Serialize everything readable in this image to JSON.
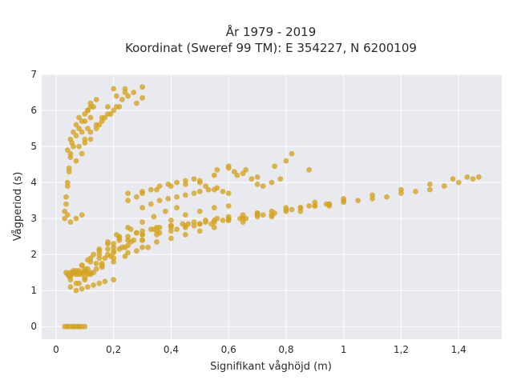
{
  "chart_data": {
    "type": "scatter",
    "title_line1": "År 1979 - 2019",
    "title_line2": "Koordinat (Sweref 99 TM): E 354227, N 6200109",
    "xlabel": "Signifikant våghöjd (m)",
    "ylabel": "Vågperiod (s)",
    "xlim": [
      -0.05,
      1.55
    ],
    "ylim": [
      -0.35,
      7.0
    ],
    "xticks": [
      0,
      0.2,
      0.4,
      0.6,
      0.8,
      1,
      1.2,
      1.4
    ],
    "xtick_labels": [
      "0",
      "0,2",
      "0,4",
      "0,6",
      "0,8",
      "1",
      "1,2",
      "1,4"
    ],
    "yticks": [
      0,
      1,
      2,
      3,
      4,
      5,
      6,
      7
    ],
    "ytick_labels": [
      "0",
      "1",
      "2",
      "3",
      "4",
      "5",
      "6",
      "7"
    ],
    "grid": true,
    "colors": {
      "background": "#e9e9f0",
      "grid": "#ffffff",
      "marker": "#d4a421"
    },
    "series": [
      {
        "x": [
          0.03,
          0.04,
          0.05,
          0.06,
          0.07,
          0.08,
          0.09,
          0.1,
          0.04,
          0.06,
          0.08,
          0.03,
          0.035,
          0.04,
          0.045,
          0.05,
          0.03,
          0.035,
          0.04,
          0.045,
          0.05,
          0.055,
          0.04,
          0.05,
          0.06,
          0.07,
          0.08,
          0.06,
          0.07,
          0.08,
          0.09,
          0.1,
          0.11,
          0.12,
          0.07,
          0.08,
          0.09,
          0.1,
          0.11,
          0.12,
          0.09,
          0.1,
          0.11,
          0.12,
          0.13,
          0.14,
          0.1,
          0.12,
          0.14,
          0.16,
          0.12,
          0.14,
          0.16,
          0.18,
          0.2,
          0.22,
          0.15,
          0.17,
          0.19,
          0.21,
          0.23,
          0.25,
          0.2,
          0.24,
          0.27,
          0.3,
          0.04,
          0.05,
          0.07,
          0.09,
          0.28,
          0.24,
          0.18,
          0.21,
          0.3,
          0.1,
          0.12,
          0.15,
          0.18,
          0.2,
          0.22,
          0.25,
          0.28,
          0.3,
          0.33,
          0.36,
          0.4,
          0.44,
          0.48,
          0.52,
          0.56,
          0.6,
          0.65,
          0.7,
          0.75,
          0.8,
          0.85,
          0.9,
          0.95,
          1.0,
          1.05,
          1.1,
          1.15,
          1.2,
          1.25,
          1.3,
          1.35,
          1.4,
          1.45,
          1.47,
          0.15,
          0.2,
          0.25,
          0.3,
          0.35,
          0.4,
          0.45,
          0.5,
          0.55,
          0.6,
          0.7,
          0.8,
          0.9,
          1.0,
          1.1,
          1.2,
          1.3,
          1.38,
          1.43,
          0.12,
          0.16,
          0.2,
          0.25,
          0.3,
          0.35,
          0.4,
          0.45,
          0.5,
          0.55,
          0.65,
          0.75,
          0.85,
          0.95,
          0.05,
          0.07,
          0.1,
          0.13,
          0.16,
          0.2,
          0.24,
          0.28,
          0.32,
          0.05,
          0.08,
          0.11,
          0.14,
          0.17,
          0.2,
          0.23,
          0.27,
          0.06,
          0.09,
          0.12,
          0.15,
          0.18,
          0.22,
          0.26,
          0.3,
          0.34,
          0.38,
          0.42,
          0.05,
          0.07,
          0.09,
          0.11,
          0.13,
          0.15,
          0.18,
          0.21,
          0.25,
          0.08,
          0.1,
          0.12,
          0.14,
          0.16,
          0.19,
          0.22,
          0.26,
          0.3,
          0.35,
          0.4,
          0.45,
          0.5,
          0.55,
          0.6,
          0.07,
          0.09,
          0.11,
          0.13,
          0.15,
          0.17,
          0.2,
          0.25,
          0.28,
          0.3,
          0.33,
          0.36,
          0.39,
          0.42,
          0.45,
          0.48,
          0.5,
          0.52,
          0.55,
          0.58,
          0.6,
          0.3,
          0.33,
          0.36,
          0.39,
          0.42,
          0.45,
          0.48,
          0.5,
          0.53,
          0.56,
          0.25,
          0.3,
          0.35,
          0.4,
          0.45,
          0.5,
          0.55,
          0.6,
          0.62,
          0.65,
          0.68,
          0.7,
          0.72,
          0.75,
          0.78,
          0.82,
          0.56,
          0.6,
          0.63,
          0.66,
          0.7,
          0.76,
          0.8,
          0.88,
          0.2,
          0.25,
          0.3,
          0.35,
          0.4,
          0.45,
          0.5,
          0.55,
          0.6,
          0.65,
          0.7,
          0.75,
          0.8,
          0.85,
          0.9,
          0.95,
          1.0,
          0.22,
          0.28,
          0.34,
          0.4,
          0.46,
          0.52,
          0.58,
          0.64,
          0.7,
          0.76,
          0.82,
          0.88,
          0.94,
          0.18,
          0.24,
          0.3,
          0.36,
          0.42,
          0.48,
          0.54,
          0.6,
          0.66,
          0.72,
          0.035,
          0.04,
          0.045,
          0.05,
          0.055,
          0.06,
          0.065,
          0.07,
          0.075,
          0.08,
          0.085,
          0.09,
          0.095,
          0.1,
          0.105,
          0.11
        ],
        "y": [
          0,
          0,
          0,
          0,
          0,
          0,
          0,
          0,
          0,
          0,
          0,
          3.2,
          3.6,
          4.0,
          4.4,
          4.7,
          3.0,
          3.4,
          3.9,
          4.3,
          4.8,
          5.1,
          4.9,
          5.2,
          5.4,
          5.6,
          5.8,
          5.0,
          5.3,
          5.5,
          5.7,
          5.9,
          6.0,
          6.1,
          4.6,
          5.0,
          5.4,
          5.7,
          6.0,
          6.2,
          4.8,
          5.2,
          5.5,
          5.8,
          6.1,
          6.3,
          5.1,
          5.4,
          5.6,
          5.8,
          5.2,
          5.5,
          5.7,
          5.9,
          6.0,
          6.1,
          5.6,
          5.8,
          5.9,
          6.1,
          6.3,
          6.4,
          6.6,
          6.6,
          6.5,
          6.65,
          3.1,
          2.9,
          3.0,
          3.1,
          6.2,
          6.5,
          6.1,
          6.4,
          6.35,
          1.6,
          1.8,
          2.0,
          2.15,
          2.3,
          2.4,
          2.5,
          2.6,
          2.65,
          2.7,
          2.75,
          2.8,
          2.85,
          2.9,
          2.95,
          3.0,
          3.05,
          3.1,
          3.15,
          3.2,
          3.25,
          3.3,
          3.35,
          3.4,
          3.45,
          3.5,
          3.55,
          3.6,
          3.7,
          3.75,
          3.8,
          3.9,
          4.0,
          4.1,
          4.15,
          1.9,
          2.1,
          2.25,
          2.4,
          2.55,
          2.65,
          2.75,
          2.85,
          2.95,
          3.0,
          3.15,
          3.3,
          3.45,
          3.55,
          3.65,
          3.8,
          3.95,
          4.1,
          4.15,
          1.5,
          1.7,
          1.9,
          2.05,
          2.2,
          2.35,
          2.45,
          2.55,
          2.65,
          2.75,
          2.9,
          3.05,
          3.2,
          3.35,
          1.1,
          1.2,
          1.35,
          1.5,
          1.65,
          1.8,
          1.95,
          2.1,
          2.2,
          1.3,
          1.45,
          1.6,
          1.75,
          1.9,
          2.05,
          2.2,
          2.4,
          1.5,
          1.7,
          1.9,
          2.1,
          2.3,
          2.5,
          2.7,
          2.9,
          3.05,
          3.2,
          3.3,
          1.4,
          1.55,
          1.7,
          1.85,
          2.0,
          2.15,
          2.35,
          2.55,
          2.75,
          1.2,
          1.3,
          1.45,
          1.6,
          1.75,
          1.95,
          2.15,
          2.35,
          2.55,
          2.75,
          2.95,
          3.1,
          3.2,
          3.3,
          3.35,
          1.0,
          1.05,
          1.1,
          1.15,
          1.2,
          1.25,
          1.3,
          3.5,
          3.6,
          3.7,
          3.8,
          3.9,
          3.95,
          4.0,
          4.05,
          4.1,
          4.0,
          3.9,
          3.8,
          3.75,
          3.7,
          3.3,
          3.4,
          3.5,
          3.55,
          3.6,
          3.65,
          3.7,
          3.75,
          3.8,
          3.85,
          3.7,
          3.75,
          3.8,
          3.9,
          3.95,
          4.05,
          4.2,
          4.4,
          4.3,
          4.25,
          4.1,
          3.95,
          3.9,
          4.0,
          4.1,
          4.8,
          4.35,
          4.45,
          4.2,
          4.35,
          4.15,
          4.45,
          4.6,
          4.35,
          2.2,
          2.4,
          2.55,
          2.65,
          2.75,
          2.8,
          2.85,
          2.9,
          2.95,
          3.0,
          3.05,
          3.1,
          3.2,
          3.3,
          3.35,
          3.4,
          3.5,
          2.45,
          2.6,
          2.7,
          2.8,
          2.85,
          2.9,
          2.95,
          3.0,
          3.1,
          3.15,
          3.25,
          3.35,
          3.4,
          2.0,
          2.2,
          2.4,
          2.6,
          2.7,
          2.8,
          2.85,
          2.95,
          3.0,
          3.1,
          1.5,
          1.45,
          1.4,
          1.5,
          1.45,
          1.55,
          1.5,
          1.45,
          1.5,
          1.55,
          1.5,
          1.45,
          1.5,
          1.55,
          1.5,
          1.45
        ]
      }
    ]
  }
}
